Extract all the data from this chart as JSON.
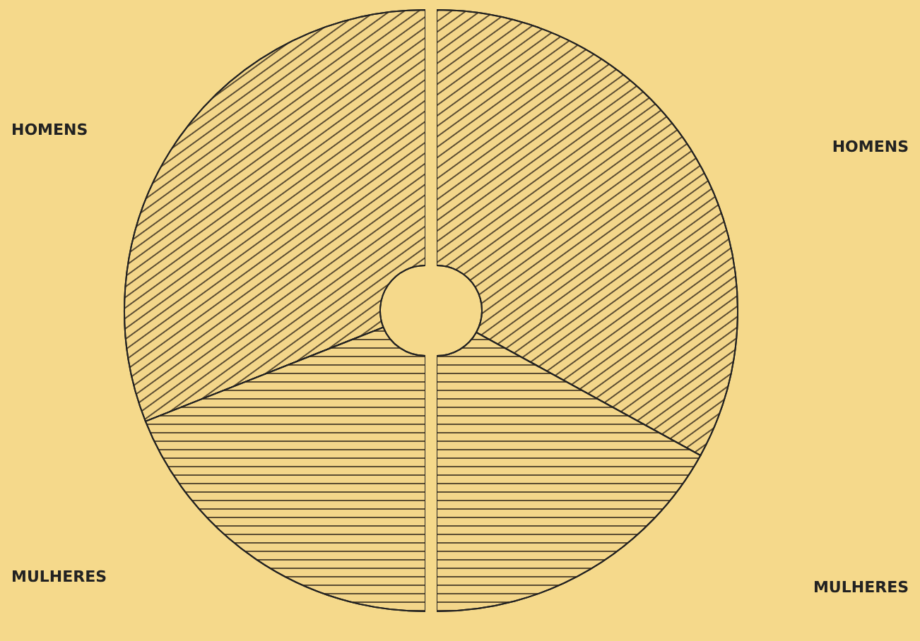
{
  "chart_data": [
    {
      "type": "donut",
      "categories": [
        "HOMENS",
        "MULHERES"
      ],
      "values": [
        62,
        38
      ],
      "colors": [
        "#f3d68a",
        "#f3d68a"
      ]
    },
    {
      "type": "donut",
      "categories": [
        "HOMENS",
        "MULHERES"
      ],
      "values": [
        66,
        34
      ],
      "colors": [
        "#f3d68a",
        "#f3d68a"
      ]
    }
  ]
}
